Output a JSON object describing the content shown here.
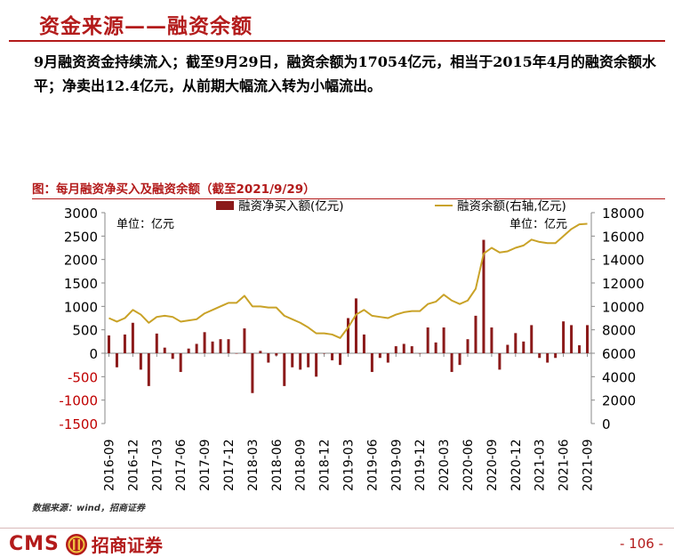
{
  "page": {
    "title": "资金来源——融资余额",
    "description": "9月融资资金持续流入；截至9月29日，融资余额为17054亿元，相当于2015年4月的融资余额水平；净卖出12.4亿元，从前期大幅流入转为小幅流出。",
    "figure_title": "图：每月融资净买入及融资余额（截至2021/9/29）",
    "source": "数据来源：wind，招商证券",
    "logo_text": "CMS",
    "logo_cn": "招商证券",
    "page_number": "- 106 -"
  },
  "colors": {
    "accent": "#b31b1b",
    "bar": "#8b1a1a",
    "line": "#c9a227"
  },
  "chart_data": {
    "type": "bar+line",
    "title": "每月融资净买入及融资余额（截至2021/9/29）",
    "categories": [
      "2016-09",
      "2016-10",
      "2016-11",
      "2016-12",
      "2017-01",
      "2017-02",
      "2017-03",
      "2017-04",
      "2017-05",
      "2017-06",
      "2017-07",
      "2017-08",
      "2017-09",
      "2017-10",
      "2017-11",
      "2017-12",
      "2018-01",
      "2018-02",
      "2018-03",
      "2018-04",
      "2018-05",
      "2018-06",
      "2018-07",
      "2018-08",
      "2018-09",
      "2018-10",
      "2018-11",
      "2018-12",
      "2019-01",
      "2019-02",
      "2019-03",
      "2019-04",
      "2019-05",
      "2019-06",
      "2019-07",
      "2019-08",
      "2019-09",
      "2019-10",
      "2019-11",
      "2019-12",
      "2020-01",
      "2020-02",
      "2020-03",
      "2020-04",
      "2020-05",
      "2020-06",
      "2020-07",
      "2020-08",
      "2020-09",
      "2020-10",
      "2020-11",
      "2020-12",
      "2021-01",
      "2021-02",
      "2021-03",
      "2021-04",
      "2021-05",
      "2021-06",
      "2021-07",
      "2021-08",
      "2021-09"
    ],
    "x_tick_labels": [
      "2016-09",
      "2016-12",
      "2017-03",
      "2017-06",
      "2017-09",
      "2017-12",
      "2018-03",
      "2018-06",
      "2018-09",
      "2018-12",
      "2019-03",
      "2019-06",
      "2019-09",
      "2019-12",
      "2020-03",
      "2020-06",
      "2020-09",
      "2020-12",
      "2021-03",
      "2021-06",
      "2021-09"
    ],
    "series": [
      {
        "name": "融资净买入额(亿元)",
        "type": "bar",
        "axis": "left",
        "values": [
          380,
          -300,
          400,
          650,
          -350,
          -700,
          420,
          120,
          -120,
          -400,
          100,
          200,
          450,
          250,
          300,
          300,
          0,
          530,
          -850,
          50,
          -200,
          -50,
          -700,
          -300,
          -350,
          -300,
          -500,
          0,
          -150,
          -250,
          750,
          1170,
          400,
          -400,
          -100,
          -200,
          150,
          200,
          150,
          0,
          550,
          230,
          550,
          -400,
          -250,
          300,
          800,
          2420,
          550,
          -350,
          180,
          430,
          250,
          600,
          -100,
          -200,
          -100,
          680,
          600,
          170,
          600
        ]
      },
      {
        "name": "融资余额(右轴,亿元)",
        "type": "line",
        "axis": "right",
        "values": [
          9000,
          8700,
          9000,
          9700,
          9300,
          8600,
          9100,
          9200,
          9100,
          8700,
          8800,
          8900,
          9400,
          9700,
          10000,
          10300,
          10300,
          10900,
          10000,
          10000,
          9900,
          9900,
          9200,
          8900,
          8600,
          8200,
          7700,
          7700,
          7600,
          7300,
          8200,
          9300,
          9700,
          9200,
          9100,
          9000,
          9300,
          9500,
          9600,
          9600,
          10200,
          10400,
          11000,
          10500,
          10200,
          10500,
          11500,
          14500,
          15000,
          14600,
          14700,
          15000,
          15200,
          15700,
          15500,
          15400,
          15400,
          16000,
          16600,
          17000,
          17054
        ]
      }
    ],
    "left_axis": {
      "label": "单位：亿元",
      "min": -1500,
      "max": 3000,
      "ticks": [
        -1500,
        -1000,
        -500,
        0,
        500,
        1000,
        1500,
        2000,
        2500,
        3000
      ]
    },
    "right_axis": {
      "label": "单位：亿元",
      "min": 0,
      "max": 18000,
      "ticks": [
        0,
        2000,
        4000,
        6000,
        8000,
        10000,
        12000,
        14000,
        16000,
        18000
      ]
    },
    "legend": {
      "placement": "top",
      "items": [
        "融资净买入额(亿元)",
        "融资余额(右轴,亿元)"
      ]
    }
  }
}
